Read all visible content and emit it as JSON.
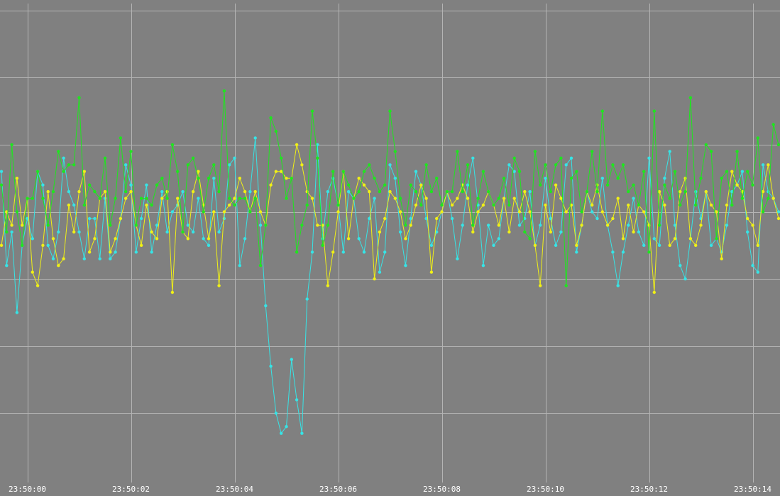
{
  "chart_data": {
    "type": "line",
    "title": "",
    "xlabel": "",
    "ylabel": "",
    "x_tick_labels": [
      "23:50:00",
      "23:50:02",
      "23:50:04",
      "23:50:06",
      "23:50:08",
      "23:50:10",
      "23:50:12",
      "23:50:14"
    ],
    "x_tick_seconds": [
      0,
      2,
      4,
      6,
      8,
      10,
      12,
      14
    ],
    "xlim": [
      -0.52,
      14.52
    ],
    "ylim": [
      -4.0,
      3.1
    ],
    "y_gridlines": [
      -3,
      -2,
      -1,
      0,
      1,
      2,
      3
    ],
    "grid": true,
    "legend": "none",
    "colors": {
      "background": "#808080",
      "grid": "#b4b4b4",
      "axis_text": "#ffffff"
    },
    "series": [
      {
        "color": "#36e4e6",
        "x": [
          -0.5,
          -0.4,
          -0.3,
          -0.2,
          -0.1,
          0.0,
          0.1,
          0.2,
          0.3,
          0.4,
          0.5,
          0.6,
          0.7,
          0.8,
          0.9,
          1.0,
          1.1,
          1.2,
          1.3,
          1.4,
          1.5,
          1.6,
          1.7,
          1.8,
          1.9,
          2.0,
          2.1,
          2.2,
          2.3,
          2.4,
          2.5,
          2.6,
          2.7,
          2.8,
          2.9,
          3.0,
          3.1,
          3.2,
          3.3,
          3.4,
          3.5,
          3.6,
          3.7,
          3.8,
          3.9,
          4.0,
          4.1,
          4.2,
          4.3,
          4.4,
          4.5,
          4.6,
          4.7,
          4.8,
          4.9,
          5.0,
          5.1,
          5.2,
          5.3,
          5.4,
          5.5,
          5.6,
          5.7,
          5.8,
          5.9,
          6.0,
          6.1,
          6.2,
          6.3,
          6.4,
          6.5,
          6.6,
          6.7,
          6.8,
          6.9,
          7.0,
          7.1,
          7.2,
          7.3,
          7.4,
          7.5,
          7.6,
          7.7,
          7.8,
          7.9,
          8.0,
          8.1,
          8.2,
          8.3,
          8.4,
          8.5,
          8.6,
          8.7,
          8.8,
          8.9,
          9.0,
          9.1,
          9.2,
          9.3,
          9.4,
          9.5,
          9.6,
          9.7,
          9.8,
          9.9,
          10.0,
          10.1,
          10.2,
          10.3,
          10.4,
          10.5,
          10.6,
          10.7,
          10.8,
          10.9,
          11.0,
          11.1,
          11.2,
          11.3,
          11.4,
          11.5,
          11.6,
          11.7,
          11.8,
          11.9,
          12.0,
          12.1,
          12.2,
          12.3,
          12.4,
          12.5,
          12.6,
          12.7,
          12.8,
          12.9,
          13.0,
          13.1,
          13.2,
          13.3,
          13.4,
          13.5,
          13.6,
          13.7,
          13.8,
          13.9,
          14.0,
          14.1,
          14.2,
          14.3,
          14.4,
          14.5
        ],
        "y": [
          0.6,
          -0.8,
          -0.3,
          -1.5,
          -0.5,
          -0.1,
          -0.4,
          0.6,
          0.4,
          -0.5,
          -0.7,
          -0.3,
          0.8,
          0.3,
          0.1,
          -0.3,
          -0.7,
          -0.1,
          -0.1,
          -0.7,
          0.2,
          -0.7,
          -0.6,
          -0.1,
          0.7,
          0.4,
          -0.6,
          -0.1,
          0.4,
          -0.6,
          -0.2,
          0.3,
          -0.3,
          0.0,
          0.1,
          0.3,
          -0.2,
          -0.3,
          0.2,
          -0.4,
          -0.5,
          0.5,
          -0.3,
          -0.1,
          0.7,
          0.8,
          -0.8,
          -0.4,
          0.3,
          1.1,
          -0.2,
          -1.4,
          -2.3,
          -3.0,
          -3.3,
          -3.2,
          -2.2,
          -2.8,
          -3.3,
          -1.3,
          -0.6,
          1.0,
          -0.4,
          0.3,
          0.5,
          0.1,
          -0.6,
          0.3,
          0.2,
          -0.4,
          -0.6,
          -0.1,
          0.2,
          -0.9,
          -0.6,
          0.7,
          0.5,
          -0.3,
          -0.8,
          -0.1,
          0.6,
          0.4,
          -0.1,
          -0.5,
          -0.3,
          0.0,
          0.3,
          -0.1,
          -0.7,
          -0.2,
          0.4,
          0.8,
          0.1,
          -0.8,
          -0.2,
          -0.5,
          -0.4,
          0.2,
          0.7,
          0.6,
          -0.2,
          -0.1,
          0.3,
          -0.5,
          -0.2,
          0.5,
          -0.1,
          -0.5,
          -0.3,
          0.7,
          0.8,
          -0.6,
          -0.2,
          0.3,
          0.0,
          -0.1,
          0.5,
          -0.2,
          -0.6,
          -1.1,
          -0.6,
          -0.2,
          0.2,
          -0.3,
          -0.5,
          0.8,
          -0.4,
          -0.5,
          0.5,
          0.9,
          -0.2,
          -0.8,
          -1.0,
          -0.4,
          0.3,
          -0.1,
          0.3,
          -0.5,
          -0.4,
          -0.6,
          -0.2,
          0.3,
          0.4,
          0.6,
          -0.3,
          -0.8,
          -0.9,
          0.7,
          0.3,
          0.2,
          0.0
        ]
      },
      {
        "color": "#f0f016",
        "x": [
          -0.5,
          -0.4,
          -0.3,
          -0.2,
          -0.1,
          0.0,
          0.1,
          0.2,
          0.3,
          0.4,
          0.5,
          0.6,
          0.7,
          0.8,
          0.9,
          1.0,
          1.1,
          1.2,
          1.3,
          1.4,
          1.5,
          1.6,
          1.7,
          1.8,
          1.9,
          2.0,
          2.1,
          2.2,
          2.3,
          2.4,
          2.5,
          2.6,
          2.7,
          2.8,
          2.9,
          3.0,
          3.1,
          3.2,
          3.3,
          3.4,
          3.5,
          3.6,
          3.7,
          3.8,
          3.9,
          4.0,
          4.1,
          4.2,
          4.3,
          4.4,
          4.5,
          4.6,
          4.7,
          4.8,
          4.9,
          5.0,
          5.1,
          5.2,
          5.3,
          5.4,
          5.5,
          5.6,
          5.7,
          5.8,
          5.9,
          6.0,
          6.1,
          6.2,
          6.3,
          6.4,
          6.5,
          6.6,
          6.7,
          6.8,
          6.9,
          7.0,
          7.1,
          7.2,
          7.3,
          7.4,
          7.5,
          7.6,
          7.7,
          7.8,
          7.9,
          8.0,
          8.1,
          8.2,
          8.3,
          8.4,
          8.5,
          8.6,
          8.7,
          8.8,
          8.9,
          9.0,
          9.1,
          9.2,
          9.3,
          9.4,
          9.5,
          9.6,
          9.7,
          9.8,
          9.9,
          10.0,
          10.1,
          10.2,
          10.3,
          10.4,
          10.5,
          10.6,
          10.7,
          10.8,
          10.9,
          11.0,
          11.1,
          11.2,
          11.3,
          11.4,
          11.5,
          11.6,
          11.7,
          11.8,
          11.9,
          12.0,
          12.1,
          12.2,
          12.3,
          12.4,
          12.5,
          12.6,
          12.7,
          12.8,
          12.9,
          13.0,
          13.1,
          13.2,
          13.3,
          13.4,
          13.5,
          13.6,
          13.7,
          13.8,
          13.9,
          14.0,
          14.1,
          14.2,
          14.3,
          14.4,
          14.5
        ],
        "y": [
          -0.5,
          0.0,
          -0.2,
          0.5,
          -0.2,
          0.2,
          -0.9,
          -1.1,
          -0.5,
          0.3,
          -0.4,
          -0.8,
          -0.7,
          0.1,
          -0.3,
          0.3,
          0.6,
          -0.6,
          -0.4,
          0.2,
          0.3,
          -0.6,
          -0.4,
          -0.1,
          0.2,
          0.3,
          -0.2,
          -0.5,
          0.1,
          -0.3,
          -0.4,
          0.2,
          0.3,
          -1.2,
          0.2,
          -0.3,
          -0.4,
          0.3,
          0.6,
          0.1,
          -0.4,
          0.0,
          -1.1,
          0.0,
          0.1,
          0.2,
          0.5,
          0.3,
          0.0,
          0.3,
          0.0,
          -0.2,
          0.4,
          0.6,
          0.6,
          0.5,
          0.5,
          1.0,
          0.7,
          0.3,
          0.2,
          -0.2,
          -0.2,
          -1.1,
          -0.6,
          0.0,
          0.6,
          -0.4,
          0.2,
          0.5,
          0.4,
          0.3,
          -1.0,
          -0.3,
          -0.1,
          0.3,
          0.2,
          0.0,
          -0.4,
          -0.2,
          0.1,
          0.4,
          0.2,
          -0.9,
          -0.1,
          0.0,
          0.3,
          0.1,
          0.2,
          0.4,
          0.2,
          -0.3,
          0.0,
          0.1,
          0.3,
          0.1,
          -0.2,
          0.2,
          -0.3,
          0.2,
          0.0,
          0.3,
          0.0,
          -0.5,
          -1.1,
          0.1,
          -0.3,
          0.4,
          0.2,
          0.0,
          0.1,
          -0.5,
          -0.2,
          0.3,
          0.1,
          0.4,
          0.0,
          -0.2,
          -0.1,
          0.2,
          -0.4,
          0.1,
          -0.3,
          0.1,
          0.0,
          -0.2,
          -1.2,
          0.3,
          0.1,
          -0.5,
          -0.4,
          0.3,
          0.5,
          -0.4,
          -0.5,
          -0.2,
          0.3,
          0.1,
          0.0,
          -0.7,
          0.1,
          0.6,
          0.4,
          0.3,
          -0.1,
          -0.2,
          -0.5,
          0.3,
          0.7,
          0.2,
          -0.1
        ]
      },
      {
        "color": "#1ee61e",
        "x": [
          -0.5,
          -0.4,
          -0.3,
          -0.2,
          -0.1,
          0.0,
          0.1,
          0.2,
          0.3,
          0.4,
          0.5,
          0.6,
          0.7,
          0.8,
          0.9,
          1.0,
          1.1,
          1.2,
          1.3,
          1.4,
          1.5,
          1.6,
          1.7,
          1.8,
          1.9,
          2.0,
          2.1,
          2.2,
          2.3,
          2.4,
          2.5,
          2.6,
          2.7,
          2.8,
          2.9,
          3.0,
          3.1,
          3.2,
          3.3,
          3.4,
          3.5,
          3.6,
          3.7,
          3.8,
          3.9,
          4.0,
          4.1,
          4.2,
          4.3,
          4.4,
          4.5,
          4.6,
          4.7,
          4.8,
          4.9,
          5.0,
          5.1,
          5.2,
          5.3,
          5.4,
          5.5,
          5.6,
          5.7,
          5.8,
          5.9,
          6.0,
          6.1,
          6.2,
          6.3,
          6.4,
          6.5,
          6.6,
          6.7,
          6.8,
          6.9,
          7.0,
          7.1,
          7.2,
          7.3,
          7.4,
          7.5,
          7.6,
          7.7,
          7.8,
          7.9,
          8.0,
          8.1,
          8.2,
          8.3,
          8.4,
          8.5,
          8.6,
          8.7,
          8.8,
          8.9,
          9.0,
          9.1,
          9.2,
          9.3,
          9.4,
          9.5,
          9.6,
          9.7,
          9.8,
          9.9,
          10.0,
          10.1,
          10.2,
          10.3,
          10.4,
          10.5,
          10.6,
          10.7,
          10.8,
          10.9,
          11.0,
          11.1,
          11.2,
          11.3,
          11.4,
          11.5,
          11.6,
          11.7,
          11.8,
          11.9,
          12.0,
          12.1,
          12.2,
          12.3,
          12.4,
          12.5,
          12.6,
          12.7,
          12.8,
          12.9,
          13.0,
          13.1,
          13.2,
          13.3,
          13.4,
          13.5,
          13.6,
          13.7,
          13.8,
          13.9,
          14.0,
          14.1,
          14.2,
          14.3,
          14.4,
          14.5
        ],
        "y": [
          0.4,
          -0.3,
          1.0,
          0.0,
          -0.5,
          0.2,
          0.2,
          0.6,
          0.2,
          -0.2,
          0.3,
          0.9,
          0.6,
          0.7,
          0.7,
          1.7,
          0.1,
          0.4,
          0.3,
          0.2,
          0.8,
          -0.2,
          0.2,
          1.1,
          0.3,
          0.9,
          -0.2,
          0.2,
          0.2,
          0.1,
          0.4,
          0.5,
          0.2,
          1.0,
          0.6,
          -0.3,
          0.7,
          0.8,
          0.5,
          0.0,
          0.5,
          0.7,
          0.3,
          1.8,
          0.2,
          0.1,
          0.2,
          0.2,
          0.0,
          0.2,
          -0.8,
          -0.2,
          1.4,
          1.2,
          0.8,
          0.2,
          0.5,
          -0.6,
          -0.2,
          0.1,
          1.5,
          0.8,
          -0.5,
          -0.2,
          0.6,
          0.1,
          0.6,
          0.4,
          0.2,
          0.3,
          0.6,
          0.7,
          0.5,
          0.3,
          0.4,
          1.5,
          0.9,
          0.2,
          -0.2,
          0.4,
          0.3,
          0.1,
          0.7,
          0.3,
          0.5,
          0.1,
          0.3,
          0.3,
          0.9,
          0.3,
          0.7,
          -0.2,
          0.2,
          0.6,
          0.3,
          0.1,
          0.2,
          0.5,
          0.1,
          0.8,
          0.6,
          -0.3,
          -0.4,
          0.9,
          0.4,
          0.7,
          0.3,
          0.7,
          0.8,
          -1.1,
          0.5,
          0.6,
          0.0,
          0.3,
          0.9,
          0.3,
          1.5,
          0.4,
          0.7,
          0.5,
          0.7,
          0.3,
          0.4,
          0.1,
          0.6,
          -0.6,
          1.5,
          -0.2,
          0.4,
          0.2,
          0.6,
          0.1,
          0.3,
          1.7,
          0.1,
          0.5,
          1.0,
          0.9,
          -0.4,
          0.5,
          0.6,
          0.1,
          0.9,
          0.2,
          0.6,
          0.4,
          1.1,
          0.0,
          0.2,
          1.3,
          1.0
        ]
      }
    ]
  }
}
